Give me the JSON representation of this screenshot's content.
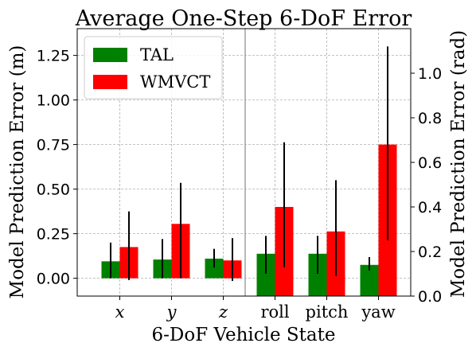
{
  "chart_data": {
    "type": "bar",
    "title": "Average One-Step 6-DoF Error",
    "xlabel": "6-DoF Vehicle State",
    "ylabel_left": "Model Prediction Error (m)",
    "ylabel_right": "Model Prediction Error (rad)",
    "categories": [
      "x",
      "y",
      "z",
      "roll",
      "pitch",
      "yaw"
    ],
    "left_axis_categories": [
      "x",
      "y",
      "z"
    ],
    "right_axis_categories": [
      "roll",
      "pitch",
      "yaw"
    ],
    "ylim_left": [
      -0.1,
      1.4
    ],
    "ylim_right": [
      0.0,
      1.2
    ],
    "yticks_left": [
      "0.00",
      "0.25",
      "0.50",
      "0.75",
      "1.00",
      "1.25"
    ],
    "yticks_right": [
      "0.0",
      "0.2",
      "0.4",
      "0.6",
      "0.8",
      "1.0"
    ],
    "legend_position": "top-left",
    "grid": true,
    "series": [
      {
        "name": "TAL",
        "color": "#008000",
        "values": [
          0.095,
          0.105,
          0.11,
          0.19,
          0.19,
          0.14
        ],
        "err_low": [
          0.0,
          0.0,
          0.06,
          0.1,
          0.1,
          0.115
        ],
        "err_high": [
          0.2,
          0.22,
          0.165,
          0.27,
          0.27,
          0.175
        ]
      },
      {
        "name": "WMVCT",
        "color": "#ff0000",
        "values": [
          0.175,
          0.305,
          0.1,
          0.4,
          0.29,
          0.68
        ],
        "err_low": [
          -0.01,
          0.0,
          -0.015,
          0.13,
          0.09,
          0.25
        ],
        "err_high": [
          0.375,
          0.535,
          0.225,
          0.69,
          0.52,
          1.12
        ]
      }
    ]
  }
}
